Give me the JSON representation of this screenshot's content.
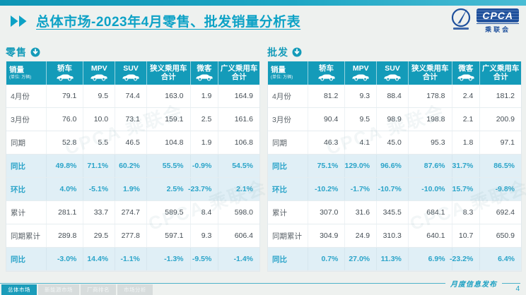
{
  "header": {
    "title": "总体市场-2023年4月零售、批发销量分析表",
    "logo": {
      "org_abbr": "CPCA",
      "org_cn": "乘联会"
    }
  },
  "watermark": "CPCA 乘联会",
  "colors": {
    "accent": "#149bb9",
    "title_teal": "#0da2c6",
    "pct_text": "#2ba4c9",
    "pct_row_bg": "#e0eff6",
    "logo_blue": "#1d4f9c"
  },
  "tables": [
    {
      "id": "retail",
      "section_label": "零售",
      "columns": [
        {
          "label": "销量",
          "sub": "(单位: 万辆)",
          "icon": null
        },
        {
          "label": "轿车",
          "icon": "sedan-icon"
        },
        {
          "label": "MPV",
          "icon": "mpv-icon"
        },
        {
          "label": "SUV",
          "icon": "suv-icon"
        },
        {
          "label": "狭义乘用车",
          "label2": "合计",
          "icon": null
        },
        {
          "label": "微客",
          "icon": "van-icon"
        },
        {
          "label": "广义乘用车",
          "label2": "合计",
          "icon": null
        }
      ],
      "rows": [
        {
          "label": "4月份",
          "type": "data",
          "values": [
            "79.1",
            "9.5",
            "74.4",
            "163.0",
            "1.9",
            "164.9"
          ]
        },
        {
          "label": "3月份",
          "type": "data",
          "values": [
            "76.0",
            "10.0",
            "73.1",
            "159.1",
            "2.5",
            "161.6"
          ]
        },
        {
          "label": "同期",
          "type": "data",
          "values": [
            "52.8",
            "5.5",
            "46.5",
            "104.8",
            "1.9",
            "106.8"
          ]
        },
        {
          "label": "同比",
          "type": "pct",
          "values": [
            "49.8%",
            "71.1%",
            "60.2%",
            "55.5%",
            "-0.9%",
            "54.5%"
          ]
        },
        {
          "label": "环比",
          "type": "pct",
          "values": [
            "4.0%",
            "-5.1%",
            "1.9%",
            "2.5%",
            "-23.7%",
            "2.1%"
          ]
        },
        {
          "label": "累计",
          "type": "data",
          "values": [
            "281.1",
            "33.7",
            "274.7",
            "589.5",
            "8.4",
            "598.0"
          ]
        },
        {
          "label": "同期累计",
          "type": "data",
          "values": [
            "289.8",
            "29.5",
            "277.8",
            "597.1",
            "9.3",
            "606.4"
          ]
        },
        {
          "label": "同比",
          "type": "pct",
          "values": [
            "-3.0%",
            "14.4%",
            "-1.1%",
            "-1.3%",
            "-9.5%",
            "-1.4%"
          ]
        }
      ]
    },
    {
      "id": "wholesale",
      "section_label": "批发",
      "columns": [
        {
          "label": "销量",
          "sub": "(单位: 万辆)",
          "icon": null
        },
        {
          "label": "轿车",
          "icon": "sedan-icon"
        },
        {
          "label": "MPV",
          "icon": "mpv-icon"
        },
        {
          "label": "SUV",
          "icon": "suv-icon"
        },
        {
          "label": "狭义乘用车",
          "label2": "合计",
          "icon": null
        },
        {
          "label": "微客",
          "icon": "van-icon"
        },
        {
          "label": "广义乘用车",
          "label2": "合计",
          "icon": null
        }
      ],
      "rows": [
        {
          "label": "4月份",
          "type": "data",
          "values": [
            "81.2",
            "9.3",
            "88.4",
            "178.8",
            "2.4",
            "181.2"
          ]
        },
        {
          "label": "3月份",
          "type": "data",
          "values": [
            "90.4",
            "9.5",
            "98.9",
            "198.8",
            "2.1",
            "200.9"
          ]
        },
        {
          "label": "同期",
          "type": "data",
          "values": [
            "46.3",
            "4.1",
            "45.0",
            "95.3",
            "1.8",
            "97.1"
          ]
        },
        {
          "label": "同比",
          "type": "pct",
          "values": [
            "75.1%",
            "129.0%",
            "96.6%",
            "87.6%",
            "31.7%",
            "86.5%"
          ]
        },
        {
          "label": "环比",
          "type": "pct",
          "values": [
            "-10.2%",
            "-1.7%",
            "-10.7%",
            "-10.0%",
            "15.7%",
            "-9.8%"
          ]
        },
        {
          "label": "累计",
          "type": "data",
          "values": [
            "307.0",
            "31.6",
            "345.5",
            "684.1",
            "8.3",
            "692.4"
          ]
        },
        {
          "label": "同期累计",
          "type": "data",
          "values": [
            "304.9",
            "24.9",
            "310.3",
            "640.1",
            "10.7",
            "650.9"
          ]
        },
        {
          "label": "同比",
          "type": "pct",
          "values": [
            "0.7%",
            "27.0%",
            "11.3%",
            "6.9%",
            "-23.2%",
            "6.4%"
          ]
        }
      ]
    }
  ],
  "footer": {
    "tabs": [
      {
        "label": "总体市场",
        "active": true
      },
      {
        "label": "新能源市场",
        "active": false
      },
      {
        "label": "厂商排名",
        "active": false
      },
      {
        "label": "市场分析",
        "active": false
      }
    ],
    "note": "月度信息发布",
    "page": "4"
  }
}
